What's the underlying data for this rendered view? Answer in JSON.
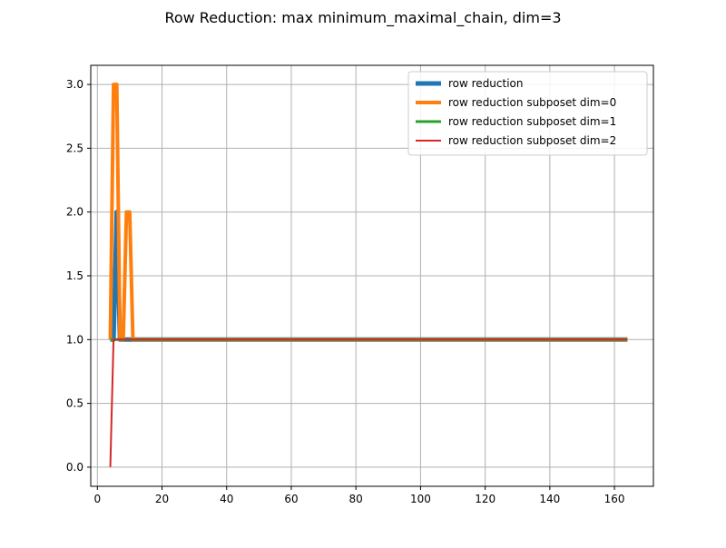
{
  "chart_data": {
    "type": "line",
    "title": "Row Reduction: max minimum_maximal_chain, dim=3",
    "xlabel": "",
    "ylabel": "",
    "xlim": [
      -2.05,
      172.05
    ],
    "ylim": [
      -0.15,
      3.15
    ],
    "xticks": [
      0,
      20,
      40,
      60,
      80,
      100,
      120,
      140,
      160
    ],
    "yticks": [
      0.0,
      0.5,
      1.0,
      1.5,
      2.0,
      2.5,
      3.0
    ],
    "xtick_labels": [
      "0",
      "20",
      "40",
      "60",
      "80",
      "100",
      "120",
      "140",
      "160"
    ],
    "ytick_labels": [
      "0.0",
      "0.5",
      "1.0",
      "1.5",
      "2.0",
      "2.5",
      "3.0"
    ],
    "grid": true,
    "legend_position": "top-right",
    "series": [
      {
        "name": "row reduction",
        "color": "#1f77b4",
        "linewidth": 5,
        "x": [
          4,
          5,
          6,
          7,
          8,
          9,
          10,
          11,
          164
        ],
        "y": [
          1,
          1,
          2,
          1,
          1,
          1,
          1,
          1,
          1
        ]
      },
      {
        "name": "row reduction subposet dim=0",
        "color": "#ff7f0e",
        "linewidth": 4,
        "x": [
          4,
          5,
          6,
          7,
          8,
          9,
          10,
          11,
          164
        ],
        "y": [
          1,
          3,
          3,
          1,
          1,
          2,
          2,
          1,
          1
        ]
      },
      {
        "name": "row reduction subposet dim=1",
        "color": "#2ca02c",
        "linewidth": 3,
        "x": [
          4,
          164
        ],
        "y": [
          1,
          1
        ]
      },
      {
        "name": "row reduction subposet dim=2",
        "color": "#d62728",
        "linewidth": 2,
        "x": [
          4,
          5,
          164
        ],
        "y": [
          0,
          1,
          1
        ]
      }
    ]
  }
}
